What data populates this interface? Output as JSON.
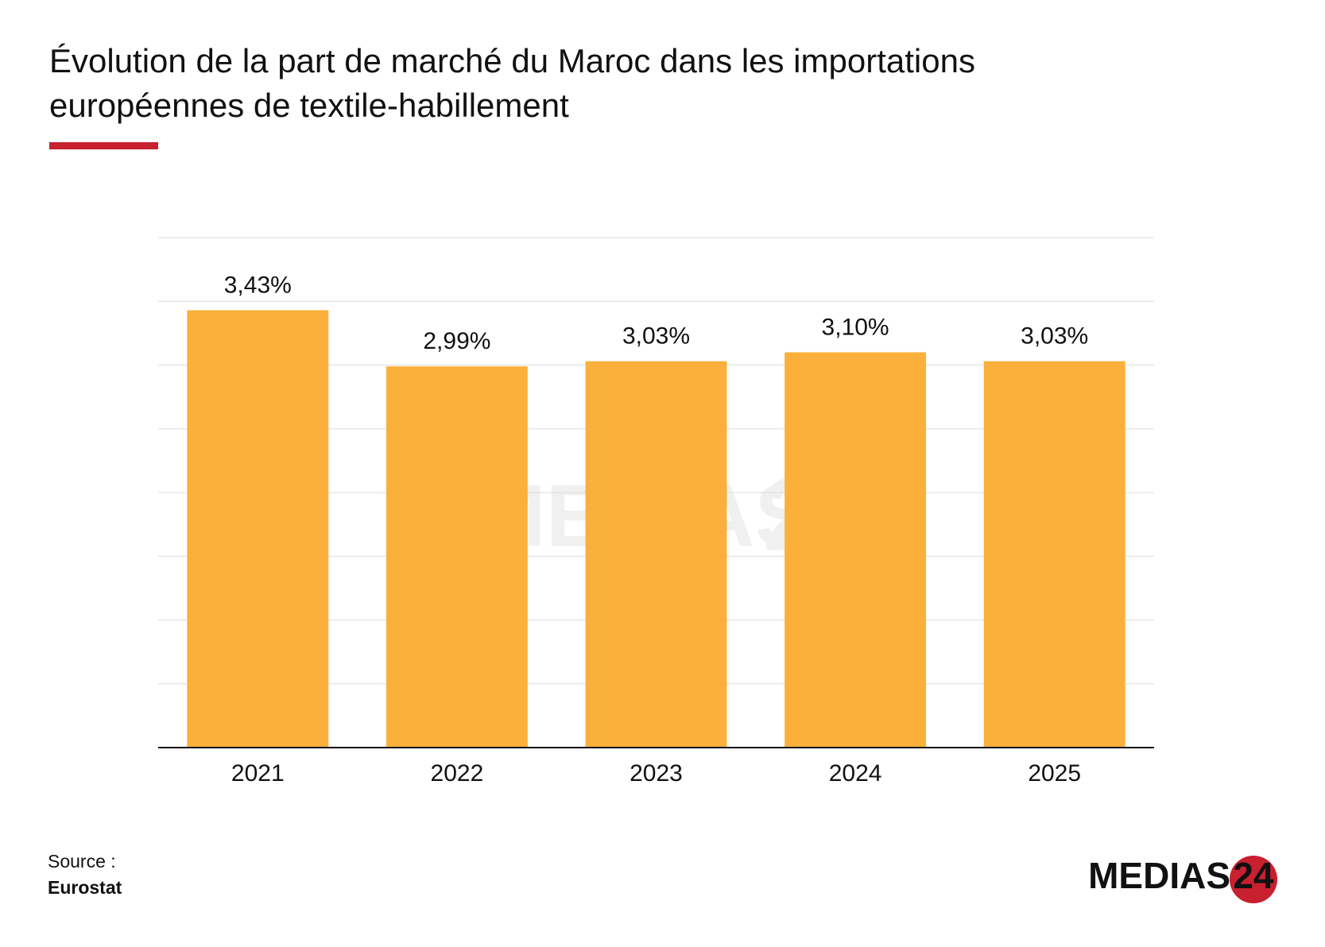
{
  "chart_data": {
    "type": "bar",
    "title": "Évolution de la part de marché du Maroc dans les importations",
    "subtitle": "européennes de textile-habillement",
    "categories": [
      "2021",
      "2022",
      "2023",
      "2024",
      "2025"
    ],
    "values": [
      3.43,
      2.99,
      3.03,
      3.1,
      3.03
    ],
    "value_labels": [
      "3,43%",
      "2,99%",
      "3,03%",
      "3,10%",
      "3,03%"
    ],
    "color": "#fbb03b",
    "ylim": [
      0,
      4
    ],
    "yticks": [
      0,
      0.5,
      1,
      1.5,
      2,
      2.5,
      3,
      3.5,
      4
    ],
    "grid": true
  },
  "footer": {
    "source_label": "Source :",
    "source": "Eurostat"
  },
  "logo": {
    "text": "MEDIAS",
    "number": "24"
  }
}
